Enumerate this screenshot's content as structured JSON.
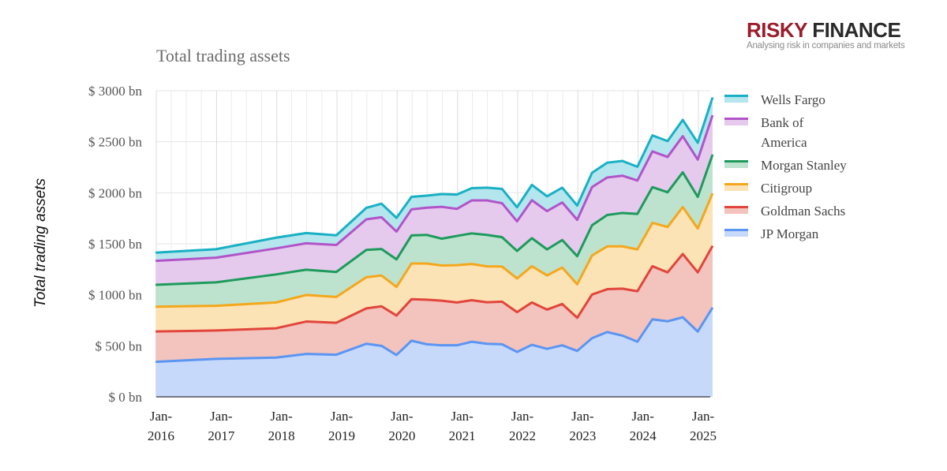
{
  "brand": {
    "part1": "RISKY",
    "part2": "FINANCE",
    "tagline": "Analysing risk in companies and markets"
  },
  "chart_data": {
    "type": "area",
    "stacked": true,
    "title": "Total trading assets",
    "xlabel": "",
    "ylabel": "Total trading assets",
    "ylim": [
      0,
      3000
    ],
    "yticks": [
      "$ 0 bn",
      "$ 500 bn",
      "$ 1000 bn",
      "$ 1500 bn",
      "$ 2000 bn",
      "$ 2500 bn",
      "$ 3000 bn"
    ],
    "xticks": [
      {
        "line1": "Jan-",
        "line2": "2016"
      },
      {
        "line1": "Jan-",
        "line2": "2017"
      },
      {
        "line1": "Jan-",
        "line2": "2018"
      },
      {
        "line1": "Jan-",
        "line2": "2019"
      },
      {
        "line1": "Jan-",
        "line2": "2020"
      },
      {
        "line1": "Jan-",
        "line2": "2021"
      },
      {
        "line1": "Jan-",
        "line2": "2022"
      },
      {
        "line1": "Jan-",
        "line2": "2023"
      },
      {
        "line1": "Jan-",
        "line2": "2024"
      },
      {
        "line1": "Jan-",
        "line2": "2025"
      }
    ],
    "grid": true,
    "legend_position": "right",
    "x": [
      "2015-12",
      "2016-12",
      "2017-12",
      "2018-06",
      "2018-12",
      "2019-06",
      "2019-09",
      "2019-12",
      "2020-03",
      "2020-06",
      "2020-09",
      "2020-12",
      "2021-03",
      "2021-06",
      "2021-09",
      "2021-12",
      "2022-03",
      "2022-06",
      "2022-09",
      "2022-12",
      "2023-03",
      "2023-06",
      "2023-09",
      "2023-12",
      "2024-03",
      "2024-06",
      "2024-09",
      "2024-12",
      "2025-03"
    ],
    "series": [
      {
        "name": "JP Morgan",
        "color": "#5b95f2",
        "fill": "#c7d9fb",
        "values": [
          343,
          372,
          385,
          420,
          413,
          520,
          500,
          410,
          550,
          515,
          505,
          505,
          540,
          520,
          515,
          440,
          510,
          470,
          505,
          450,
          575,
          635,
          600,
          540,
          760,
          740,
          780,
          640,
          875
        ]
      },
      {
        "name": "Goldman Sachs",
        "color": "#e2453b",
        "fill": "#f3c3bd",
        "values": [
          298,
          278,
          287,
          318,
          313,
          347,
          387,
          387,
          407,
          437,
          437,
          420,
          407,
          407,
          418,
          390,
          415,
          385,
          405,
          325,
          428,
          420,
          460,
          495,
          520,
          480,
          620,
          580,
          605
        ]
      },
      {
        "name": "Citigroup",
        "color": "#f4a71c",
        "fill": "#fbe3b6",
        "values": [
          242,
          242,
          253,
          260,
          253,
          305,
          302,
          280,
          350,
          355,
          345,
          365,
          355,
          352,
          344,
          330,
          355,
          335,
          357,
          328,
          382,
          420,
          415,
          410,
          425,
          445,
          460,
          430,
          515
        ]
      },
      {
        "name": "Morgan Stanley",
        "color": "#1e9a5c",
        "fill": "#bde3cf",
        "values": [
          215,
          230,
          275,
          248,
          245,
          268,
          260,
          270,
          275,
          280,
          263,
          287,
          300,
          308,
          288,
          270,
          275,
          255,
          270,
          275,
          297,
          307,
          327,
          348,
          350,
          340,
          340,
          310,
          380
        ]
      },
      {
        "name": "Bank of America",
        "color": "#b154c8",
        "fill": "#e5caee",
        "values": [
          235,
          242,
          255,
          259,
          264,
          300,
          311,
          273,
          255,
          267,
          312,
          265,
          323,
          338,
          333,
          290,
          372,
          375,
          368,
          357,
          374,
          368,
          365,
          327,
          350,
          346,
          354,
          365,
          385
        ]
      },
      {
        "name": "Wells Fargo",
        "color": "#19b0c4",
        "fill": "#b5e6ee",
        "values": [
          80,
          83,
          105,
          100,
          95,
          112,
          133,
          134,
          123,
          118,
          125,
          140,
          120,
          125,
          140,
          138,
          150,
          145,
          145,
          140,
          140,
          145,
          145,
          135,
          157,
          155,
          160,
          165,
          175
        ]
      }
    ]
  }
}
